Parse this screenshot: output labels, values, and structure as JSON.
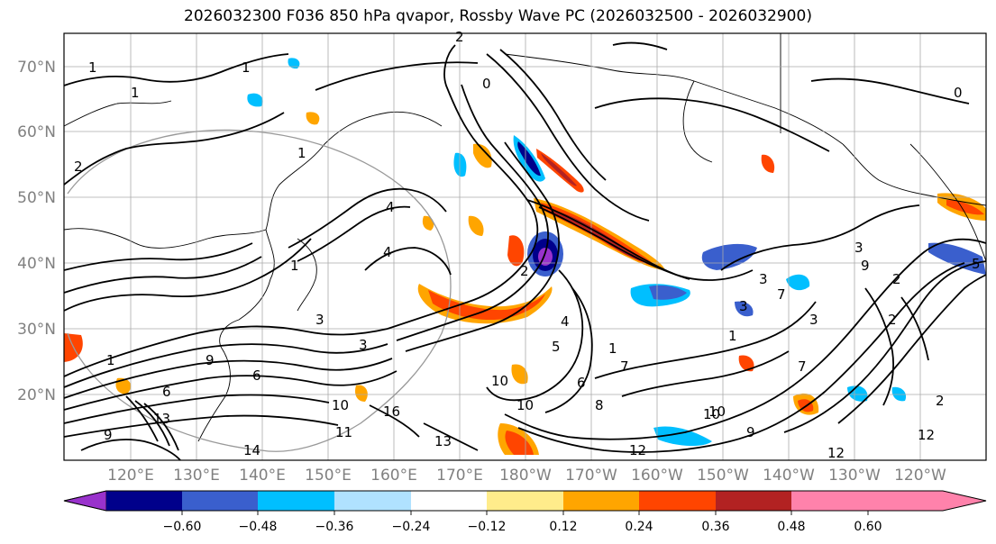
{
  "title": "2026032300 F036 850 hPa qvapor, Rossby Wave PC (2026032500 - 2026032900)",
  "latitude_labels": [
    "70°N",
    "60°N",
    "50°N",
    "40°N",
    "30°N",
    "20°N"
  ],
  "longitude_labels": [
    "120°E",
    "130°E",
    "140°E",
    "150°E",
    "160°E",
    "170°E",
    "180°W",
    "170°W",
    "160°W",
    "150°W",
    "140°W",
    "130°W",
    "120°W"
  ],
  "colorbar": {
    "colors": [
      "#9932cc",
      "#00008b",
      "#3a5fcd",
      "#00bfff",
      "#b0e2ff",
      "#ffffff",
      "#ffec8b",
      "#ffa500",
      "#ff4500",
      "#b22222",
      "#ff82ab"
    ],
    "tick_labels": [
      "−0.60",
      "−0.48",
      "−0.36",
      "−0.24",
      "−0.12",
      "0.12",
      "0.24",
      "0.36",
      "0.48",
      "0.60"
    ]
  },
  "contour_labels": [
    "1",
    "1",
    "1",
    "2",
    "2",
    "1",
    "0",
    "0",
    "1",
    "4",
    "2",
    "2",
    "3",
    "1",
    "1",
    "3",
    "2",
    "3",
    "4",
    "5",
    "3",
    "7",
    "6",
    "6",
    "9",
    "10",
    "13",
    "16",
    "11",
    "10",
    "13",
    "14",
    "12",
    "12",
    "12",
    "10",
    "9",
    "8",
    "7",
    "6",
    "5",
    "3",
    "3",
    "2",
    "4",
    "9",
    "7",
    "10",
    "10",
    "9",
    "1"
  ]
}
